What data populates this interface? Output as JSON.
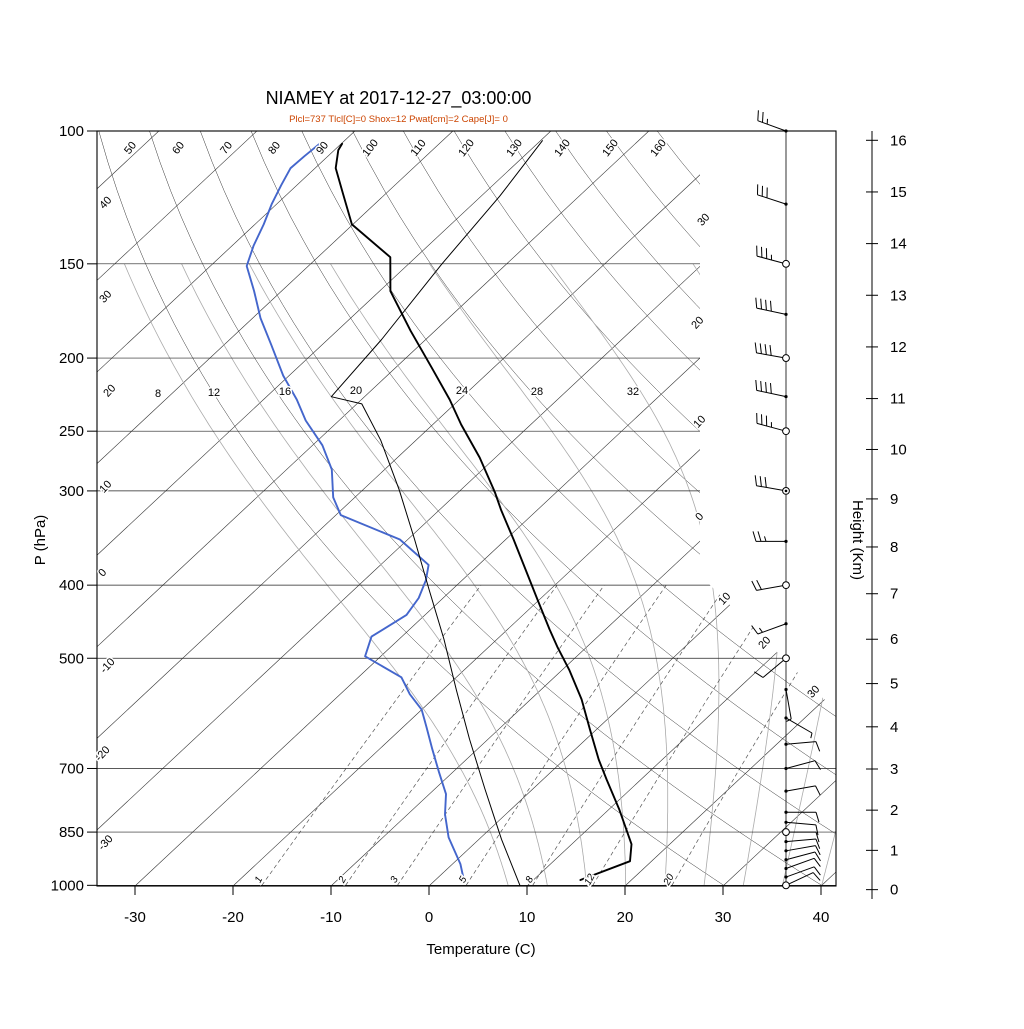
{
  "header": {
    "title": "NIAMEY at 2017-12-27_03:00:00",
    "params_line": "Plcl=737 Tlcl[C]=0 Shox=12 Pwat[cm]=2 Cape[J]= 0",
    "params_color": "#cc4400"
  },
  "axes": {
    "pressure": {
      "label": "P (hPa)",
      "ticks": [
        100,
        150,
        200,
        250,
        300,
        400,
        500,
        700,
        850,
        1000
      ]
    },
    "temperature": {
      "label": "Temperature (C)",
      "ticks": [
        -30,
        -20,
        -10,
        0,
        10,
        20,
        30,
        40
      ]
    },
    "height": {
      "label": "Height (Km)",
      "ticks": [
        0,
        1,
        2,
        3,
        4,
        5,
        6,
        7,
        8,
        9,
        10,
        11,
        12,
        13,
        14,
        15,
        16
      ]
    }
  },
  "chart_data": {
    "type": "line",
    "plot_style": "skew-t-log-p",
    "title": "NIAMEY at 2017-12-27_03:00:00",
    "station": "NIAMEY",
    "datetime": "2017-12-27_03:00:00",
    "parameters": {
      "Plcl": 737,
      "Tlcl_C": 0,
      "Shox": 12,
      "Pwat_cm": 2,
      "Cape_J": 0
    },
    "pressure_range_hPa": [
      100,
      1000
    ],
    "temperature_axis_C": [
      -30,
      40
    ],
    "series": [
      {
        "name": "temperature",
        "color": "#000000",
        "width": 1.9,
        "points": [
          [
            984,
            14.8
          ],
          [
            929,
            17.8
          ],
          [
            882,
            16.1
          ],
          [
            794,
            11.1
          ],
          [
            724,
            6.5
          ],
          [
            681,
            3.5
          ],
          [
            621,
            -0.7
          ],
          [
            567,
            -4.8
          ],
          [
            518,
            -9.3
          ],
          [
            484,
            -12.9
          ],
          [
            458,
            -15.7
          ],
          [
            418,
            -20.2
          ],
          [
            376,
            -25.4
          ],
          [
            348,
            -29.2
          ],
          [
            318,
            -33.7
          ],
          [
            301,
            -36.3
          ],
          [
            271,
            -41.6
          ],
          [
            245,
            -47.1
          ],
          [
            227,
            -51.0
          ],
          [
            206,
            -56.3
          ],
          [
            184,
            -62.5
          ],
          [
            163,
            -68.9
          ],
          [
            147,
            -72.6
          ],
          [
            133,
            -80.1
          ],
          [
            121,
            -84.4
          ],
          [
            112,
            -87.9
          ],
          [
            106,
            -89.6
          ],
          [
            104,
            -89.9
          ]
        ]
      },
      {
        "name": "dewpoint",
        "color": "#4466cc",
        "width": 1.9,
        "points": [
          [
            993,
            3.3
          ],
          [
            937,
            0.8
          ],
          [
            864,
            -3.3
          ],
          [
            805,
            -6.2
          ],
          [
            757,
            -8.3
          ],
          [
            708,
            -11.4
          ],
          [
            660,
            -14.6
          ],
          [
            617,
            -17.6
          ],
          [
            585,
            -20.0
          ],
          [
            558,
            -22.9
          ],
          [
            530,
            -25.6
          ],
          [
            497,
            -31.6
          ],
          [
            468,
            -33.1
          ],
          [
            438,
            -31.9
          ],
          [
            416,
            -32.5
          ],
          [
            394,
            -33.7
          ],
          [
            376,
            -35.1
          ],
          [
            348,
            -40.8
          ],
          [
            323,
            -49.5
          ],
          [
            306,
            -52.2
          ],
          [
            281,
            -55.4
          ],
          [
            261,
            -59.0
          ],
          [
            242,
            -63.4
          ],
          [
            227,
            -66.6
          ],
          [
            211,
            -70.6
          ],
          [
            192,
            -75.2
          ],
          [
            177,
            -79.2
          ],
          [
            163,
            -82.8
          ],
          [
            151,
            -86.3
          ],
          [
            142,
            -87.8
          ],
          [
            133,
            -89.1
          ],
          [
            125,
            -90.5
          ],
          [
            118,
            -91.6
          ],
          [
            112,
            -92.5
          ],
          [
            108,
            -92.4
          ],
          [
            104,
            -92.2
          ]
        ]
      },
      {
        "name": "parcel_trace",
        "color": "#000000",
        "width": 1.0,
        "points": [
          [
            1000,
            9.2
          ],
          [
            869,
            2.3
          ],
          [
            745,
            -4.9
          ],
          [
            640,
            -11.9
          ],
          [
            551,
            -18.6
          ],
          [
            472,
            -25.4
          ],
          [
            406,
            -32.3
          ],
          [
            348,
            -39.3
          ],
          [
            299,
            -46.3
          ],
          [
            257,
            -53.6
          ],
          [
            230,
            -59.5
          ],
          [
            225,
            -63.4
          ],
          [
            189,
            -64.5
          ],
          [
            150,
            -66.6
          ],
          [
            122,
            -68.1
          ],
          [
            103,
            -69.8
          ]
        ]
      }
    ],
    "wind_barbs": {
      "units": "kt",
      "levels": [
        [
          100,
          290,
          25
        ],
        [
          125,
          288,
          30
        ],
        [
          150,
          285,
          35
        ],
        [
          175,
          282,
          38
        ],
        [
          200,
          280,
          40
        ],
        [
          225,
          282,
          38
        ],
        [
          250,
          285,
          35
        ],
        [
          300,
          280,
          30
        ],
        [
          350,
          270,
          25
        ],
        [
          400,
          260,
          20
        ],
        [
          450,
          250,
          15
        ],
        [
          500,
          230,
          10
        ],
        [
          550,
          170,
          5
        ],
        [
          600,
          120,
          5
        ],
        [
          650,
          85,
          8
        ],
        [
          700,
          75,
          10
        ],
        [
          750,
          80,
          8
        ],
        [
          800,
          90,
          8
        ],
        [
          825,
          95,
          10
        ],
        [
          850,
          90,
          12
        ],
        [
          875,
          85,
          10
        ],
        [
          900,
          80,
          10
        ],
        [
          925,
          75,
          12
        ],
        [
          950,
          70,
          10
        ],
        [
          975,
          70,
          12
        ],
        [
          1000,
          65,
          10
        ]
      ],
      "circle_levels": [
        150,
        200,
        250,
        300,
        400,
        500,
        850,
        1000
      ]
    },
    "skew_t_lines": {
      "isotherms_c": {
        "min": -110,
        "max": 40,
        "step": 10
      },
      "dry_adiabats_c": {
        "min": 30,
        "max": 170,
        "step": 10
      },
      "moist_adiabats_c": [
        8,
        12,
        16,
        20,
        24,
        28,
        32,
        36,
        40
      ],
      "mixing_ratio_g_kg": [
        1,
        2,
        3,
        5,
        8,
        12,
        20
      ]
    },
    "inplot_labels": {
      "dry_adiabat_top": [
        "50",
        "60",
        "70",
        "80",
        "90",
        "100",
        "110",
        "120",
        "130",
        "140",
        "150",
        "160"
      ],
      "isotherm_left": [
        "40",
        "30",
        "20",
        "10",
        "0",
        "-10",
        "-20",
        "-30"
      ],
      "moist_adiabat_mid": [
        "8",
        "12",
        "16",
        "20",
        "24",
        "28",
        "32"
      ],
      "isotherm_right": [
        "30",
        "20",
        "10",
        "0",
        "10",
        "20",
        "30"
      ],
      "mixing_ratio_bottom": [
        "1",
        "2",
        "3",
        "5",
        "8",
        "12",
        "20"
      ]
    }
  }
}
